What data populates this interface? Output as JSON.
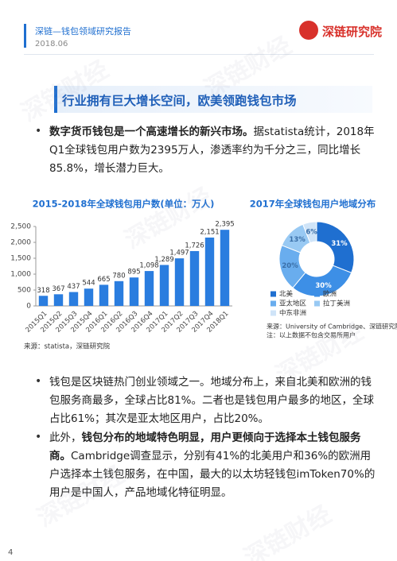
{
  "header": {
    "title": "深链—钱包领域研究报告",
    "date": "2018.06",
    "brand": "深链研究院"
  },
  "watermark": "深链财经",
  "section_title": "行业拥有巨大增长空间，欧美领跑钱包市场",
  "paragraphs": [
    {
      "bold": "数字货币钱包是一个高速增长的新兴市场。",
      "text": "据statista统计，2018年Q1全球钱包用户数为2395万人，渗透率约为千分之三，同比增长85.8%，增长潜力巨大。"
    },
    {
      "text": "钱包是区块链热门创业领域之一。地域分布上，来自北美和欧洲的钱包服务商最多，全球占比81%。二者也是钱包用户最多的地区，全球占比61%；其次是亚太地区用户，占比20%。"
    },
    {
      "lead": "此外，",
      "bold": "钱包分布的地域特色明显，用户更倾向于选择本土钱包服务商。",
      "text": "Cambridge调查显示，分别有41%的北美用户和36%的欧洲用户选择本土钱包服务，在中国，最大的以太坊轻钱包imToken70%的用户是中国人，产品地域化特征明显。"
    }
  ],
  "page_number": "4",
  "chart_data": [
    {
      "type": "bar",
      "title": "2015-2018年全球钱包用户数(单位：万人)",
      "color": "#2a7ddf",
      "categories": [
        "2015Q1",
        "2015Q2",
        "2015Q3",
        "2015Q4",
        "2016Q1",
        "2016Q2",
        "2016Q3",
        "2016Q4",
        "2017Q1",
        "2017Q2",
        "2017Q3",
        "2017Q4",
        "2018Q1"
      ],
      "values": [
        318,
        367,
        437,
        544,
        665,
        780,
        895,
        1098,
        1289,
        1497,
        1726,
        2151,
        2395
      ],
      "value_labels": [
        "318",
        "367",
        "437",
        "544",
        "665",
        "780",
        "895",
        "1,098",
        "1,289",
        "1,497",
        "1,726",
        "2,151",
        "2,395"
      ],
      "ylim": [
        0,
        2500
      ],
      "yticks": [
        0,
        500,
        {
          "value": 1000,
          "label": "1,000"
        },
        {
          "value": 1500,
          "label": "1,500"
        },
        {
          "value": 2000,
          "label": "2,000"
        },
        {
          "value": 2500,
          "label": "2,500"
        }
      ],
      "source": "来源：statista，深链研究院"
    },
    {
      "type": "pie",
      "title": "2017年全球钱包用户地域分布",
      "categories": [
        "北美",
        "欧洲",
        "亚太地区",
        "拉丁美洲",
        "中东非洲"
      ],
      "values": [
        31,
        30,
        20,
        13,
        6
      ],
      "value_labels": [
        "31%",
        "30%",
        "20%",
        "13%",
        "6%"
      ],
      "colors": [
        "#1f6fd0",
        "#3d8fe6",
        "#69adee",
        "#98c9f3",
        "#cfe4f8"
      ],
      "source": "来源：University of Cambridge、深链研究院",
      "note": "注：以上数据不包含交易所用户"
    }
  ]
}
